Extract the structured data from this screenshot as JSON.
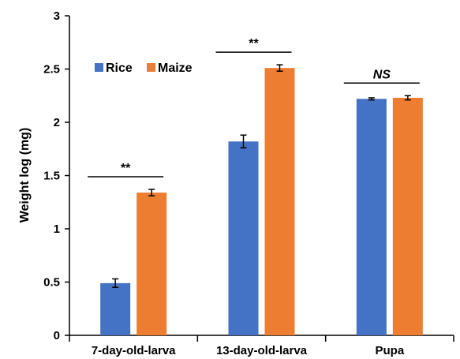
{
  "chart_data": {
    "type": "bar",
    "title": "",
    "xlabel": "",
    "ylabel": "Weight log (mg)",
    "ylim": [
      0,
      3
    ],
    "yticks": [
      "0",
      "0.5",
      "1",
      "1.5",
      "2",
      "2.5",
      "3"
    ],
    "categories": [
      "7-day-old-larva",
      "13-day-old-larva",
      "Pupa"
    ],
    "series": [
      {
        "name": "Rice",
        "color": "#4472C4",
        "values": [
          0.49,
          1.82,
          2.22
        ],
        "errors": [
          0.04,
          0.06,
          0.01
        ]
      },
      {
        "name": "Maize",
        "color": "#ED7D31",
        "values": [
          1.34,
          2.51,
          2.23
        ],
        "errors": [
          0.03,
          0.03,
          0.02
        ]
      }
    ],
    "significance": [
      "**",
      "**",
      "NS"
    ],
    "legend_position": "top-left",
    "grid": false
  }
}
